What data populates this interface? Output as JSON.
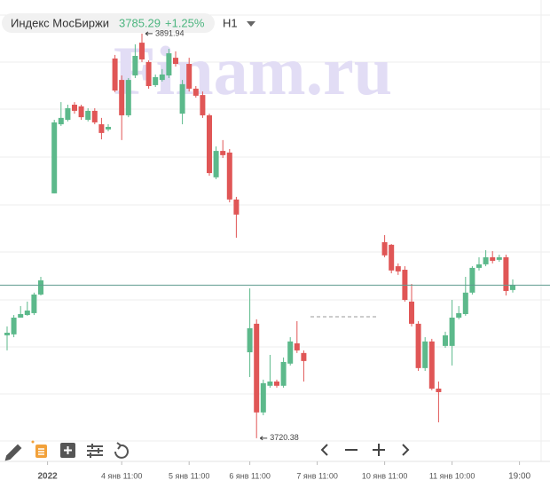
{
  "chart_data": {
    "type": "candlestick",
    "title": "Индекс МосБиржи",
    "change": "+1.25%",
    "timeframe": "H1",
    "watermark": "Finam.ru",
    "up_color": "#5cb98b",
    "down_color": "#e05656",
    "ylim": [
      3714.3,
      3906.2
    ],
    "categories": [
      null,
      null,
      null,
      null,
      null,
      null,
      "2022",
      null,
      null,
      null,
      null,
      null,
      null,
      null,
      null,
      null,
      null,
      "4 янв 11:00",
      null,
      null,
      null,
      null,
      null,
      null,
      null,
      null,
      null,
      "5 янв 11:00",
      null,
      null,
      null,
      null,
      null,
      null,
      null,
      null,
      "6 янв 11:00",
      null,
      null,
      null,
      null,
      null,
      null,
      null,
      null,
      null,
      "7 янв 11:00",
      null,
      null,
      null,
      null,
      null,
      null,
      null,
      null,
      null,
      "10 янв 11:00",
      null,
      null,
      null,
      null,
      null,
      null,
      null,
      null,
      null,
      "11 янв 10:00",
      null,
      null,
      null,
      null,
      null,
      null,
      null,
      null,
      null,
      "19:00"
    ],
    "open": [
      3764.0,
      3764.4,
      3771.5,
      3772.6,
      3773.4,
      3781.3,
      null,
      3824.2,
      3853.5,
      3855.4,
      3861.8,
      3861.1,
      3855.4,
      3859.2,
      3853.5,
      3851.3,
      3881.4,
      3872.3,
      3857.3,
      3874.2,
      3888.1,
      3879.9,
      3870.1,
      3872.3,
      3874.2,
      3881.7,
      3858.0,
      3879.1,
      3868.6,
      3865.9,
      3857.3,
      3831.0,
      3842.2,
      3841.5,
      3821.6,
      null,
      3756.8,
      3768.9,
      3731.3,
      3742.6,
      3744.4,
      3742.6,
      3752.0,
      3760.6,
      3756.5,
      null,
      null,
      null,
      null,
      null,
      null,
      null,
      null,
      null,
      null,
      null,
      3803.5,
      3802.4,
      3793.3,
      3791.8,
      3778.3,
      3768.9,
      3750.1,
      3761.4,
      3741.4,
      3759.5,
      3759.5,
      3771.5,
      3773.0,
      3782.1,
      3792.6,
      3794.1,
      3797.1,
      3796.0,
      3797.1,
      3783.2,
      null
    ],
    "high": [
      3767.8,
      3772.6,
      3776.4,
      3778.3,
      3782.1,
      3788.8,
      null,
      3855.4,
      3862.9,
      3861.8,
      3862.9,
      3861.8,
      3860.3,
      3860.3,
      3856.2,
      3853.5,
      3882.9,
      3874.2,
      3873.1,
      3887.4,
      3891.94,
      3880.6,
      3874.6,
      3876.9,
      3885.5,
      3884.4,
      3872.3,
      3881.7,
      3869.7,
      3867.4,
      3858.0,
      3844.1,
      3846.8,
      3843.0,
      3822.7,
      null,
      3783.9,
      3770.8,
      3745.2,
      3755.7,
      3745.2,
      3754.6,
      3763.2,
      3770.0,
      3757.6,
      null,
      null,
      null,
      null,
      null,
      null,
      null,
      null,
      null,
      null,
      null,
      3806.5,
      3802.7,
      3794.5,
      3793.3,
      3785.8,
      3770.0,
      3763.2,
      3762.5,
      3744.4,
      3765.5,
      3779.0,
      3776.4,
      3788.8,
      3793.3,
      3797.1,
      3800.1,
      3799.7,
      3798.2,
      3798.2,
      3787.7,
      null
    ],
    "low": [
      3757.6,
      3763.2,
      3771.5,
      3772.3,
      3772.6,
      3780.9,
      null,
      3824.2,
      3852.8,
      3854.7,
      3858.0,
      3855.4,
      3854.7,
      3853.5,
      3847.1,
      3850.5,
      3867.1,
      3846.8,
      3856.5,
      3873.1,
      3879.9,
      3868.6,
      3869.3,
      3871.6,
      3873.1,
      3878.0,
      3853.5,
      3867.4,
      3864.8,
      3856.2,
      3831.7,
      3830.2,
      3839.2,
      3820.4,
      3805.4,
      null,
      3746.3,
      3720.38,
      3730.1,
      3741.8,
      3741.8,
      3741.8,
      3751.2,
      3756.5,
      3744.4,
      null,
      null,
      null,
      null,
      null,
      null,
      null,
      null,
      null,
      null,
      null,
      3797.1,
      3790.3,
      3789.6,
      3778.3,
      3767.8,
      3748.9,
      3748.9,
      3740.7,
      3727.1,
      3758.7,
      3751.2,
      3770.8,
      3772.3,
      3781.3,
      3791.5,
      3793.3,
      3794.5,
      3795.2,
      3780.9,
      3782.1,
      null
    ],
    "close": [
      3765.1,
      3771.5,
      3773.0,
      3774.5,
      3781.3,
      3787.3,
      null,
      3854.3,
      3856.2,
      3860.3,
      3859.2,
      3856.5,
      3859.2,
      3854.3,
      3849.8,
      3852.4,
      3867.8,
      3857.3,
      3872.3,
      3882.5,
      3881.0,
      3869.7,
      3873.5,
      3874.6,
      3883.6,
      3879.1,
      3870.5,
      3868.6,
      3865.6,
      3857.3,
      3832.8,
      3842.2,
      3840.4,
      3821.6,
      3815.2,
      null,
      3767.0,
      3731.3,
      3743.7,
      3744.4,
      3742.6,
      3752.7,
      3761.4,
      3757.6,
      3753.1,
      null,
      null,
      null,
      null,
      null,
      null,
      null,
      null,
      null,
      null,
      null,
      3797.9,
      3791.5,
      3791.1,
      3779.0,
      3768.9,
      3750.1,
      3761.4,
      3741.4,
      3739.9,
      3764.0,
      3771.5,
      3773.4,
      3782.1,
      3792.6,
      3794.1,
      3797.1,
      3795.6,
      3797.1,
      3782.8,
      3785.29,
      null
    ]
  }
}
